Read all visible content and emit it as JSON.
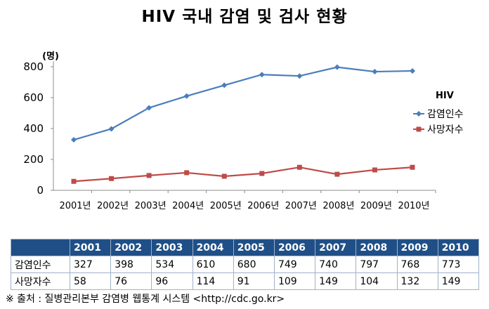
{
  "title": "HIV 국내 감염 및 검사 현황",
  "source_note": "※ 출처 : 질병관리본부 감염병 웹통계 시스템 <http://cdc.go.kr>",
  "chart_data": {
    "type": "line",
    "unit_label": "(명)",
    "categories": [
      "2001년",
      "2002년",
      "2003년",
      "2004년",
      "2005년",
      "2006년",
      "2007년",
      "2008년",
      "2009년",
      "2010년"
    ],
    "ylim": [
      0,
      800
    ],
    "yticks": [
      0,
      200,
      400,
      600,
      800
    ],
    "grid": false,
    "legend_title": "HIV",
    "legend_position": "right",
    "series": [
      {
        "name": "감염인수",
        "color": "#4a7ebb",
        "marker": "diamond",
        "values": [
          327,
          398,
          534,
          610,
          680,
          749,
          740,
          797,
          768,
          773
        ]
      },
      {
        "name": "사망자수",
        "color": "#be4b48",
        "marker": "square",
        "values": [
          58,
          76,
          96,
          114,
          91,
          109,
          149,
          104,
          132,
          149
        ]
      }
    ]
  },
  "table": {
    "headers": [
      "",
      "2001",
      "2002",
      "2003",
      "2004",
      "2005",
      "2006",
      "2007",
      "2008",
      "2009",
      "2010"
    ],
    "rows": [
      {
        "label": "감염인수",
        "values": [
          "327",
          "398",
          "534",
          "610",
          "680",
          "749",
          "740",
          "797",
          "768",
          "773"
        ]
      },
      {
        "label": "사망자수",
        "values": [
          "58",
          "76",
          "96",
          "114",
          "91",
          "109",
          "149",
          "104",
          "132",
          "149"
        ]
      }
    ]
  }
}
